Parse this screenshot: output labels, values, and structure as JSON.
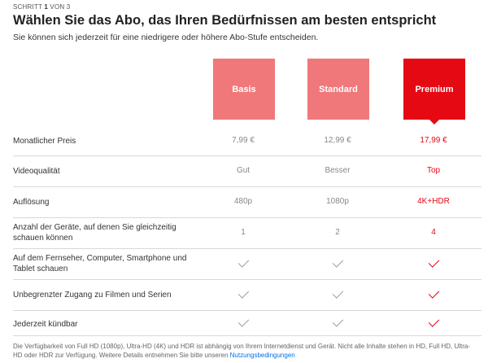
{
  "header": {
    "step_prefix": "SCHRITT ",
    "step_current": "1",
    "step_suffix": " VON 3",
    "title": "Wählen Sie das Abo, das Ihren Bedürfnissen am besten entspricht",
    "subtitle": "Sie können sich jederzeit für eine niedrigere oder höhere Abo-Stufe entscheiden."
  },
  "plans": [
    {
      "name": "Basis",
      "selected": false
    },
    {
      "name": "Standard",
      "selected": false
    },
    {
      "name": "Premium",
      "selected": true
    }
  ],
  "rows": [
    {
      "label": "Monatlicher Preis",
      "values": [
        "7,99 €",
        "12,99 €",
        "17,99 €"
      ]
    },
    {
      "label": "Videoqualität",
      "values": [
        "Gut",
        "Besser",
        "Top"
      ]
    },
    {
      "label": "Auflösung",
      "values": [
        "480p",
        "1080p",
        "4K+HDR"
      ]
    },
    {
      "label": "Anzahl der Geräte, auf denen Sie gleichzeitig schauen können",
      "values": [
        "1",
        "2",
        "4"
      ]
    },
    {
      "label": "Auf dem Fernseher, Computer, Smartphone und Tablet schauen",
      "check": [
        true,
        true,
        true
      ]
    },
    {
      "label": "Unbegrenzter Zugang zu Filmen und Serien",
      "check": [
        true,
        true,
        true
      ]
    },
    {
      "label": "Jederzeit kündbar",
      "check": [
        true,
        true,
        true
      ]
    }
  ],
  "footnote": {
    "text": "Die Verfügbarkeit von Full HD (1080p), Ultra-HD (4K) und HDR ist abhängig von Ihrem Internetdienst und Gerät. Nicht alle Inhalte stehen in HD, Full HD, Ultra-HD oder HDR zur Verfügung. Weitere Details entnehmen Sie bitte unseren ",
    "link": "Nutzungsbedingungen"
  },
  "colors": {
    "accent": "#e50914",
    "plan_unselected": "#f0787a"
  }
}
